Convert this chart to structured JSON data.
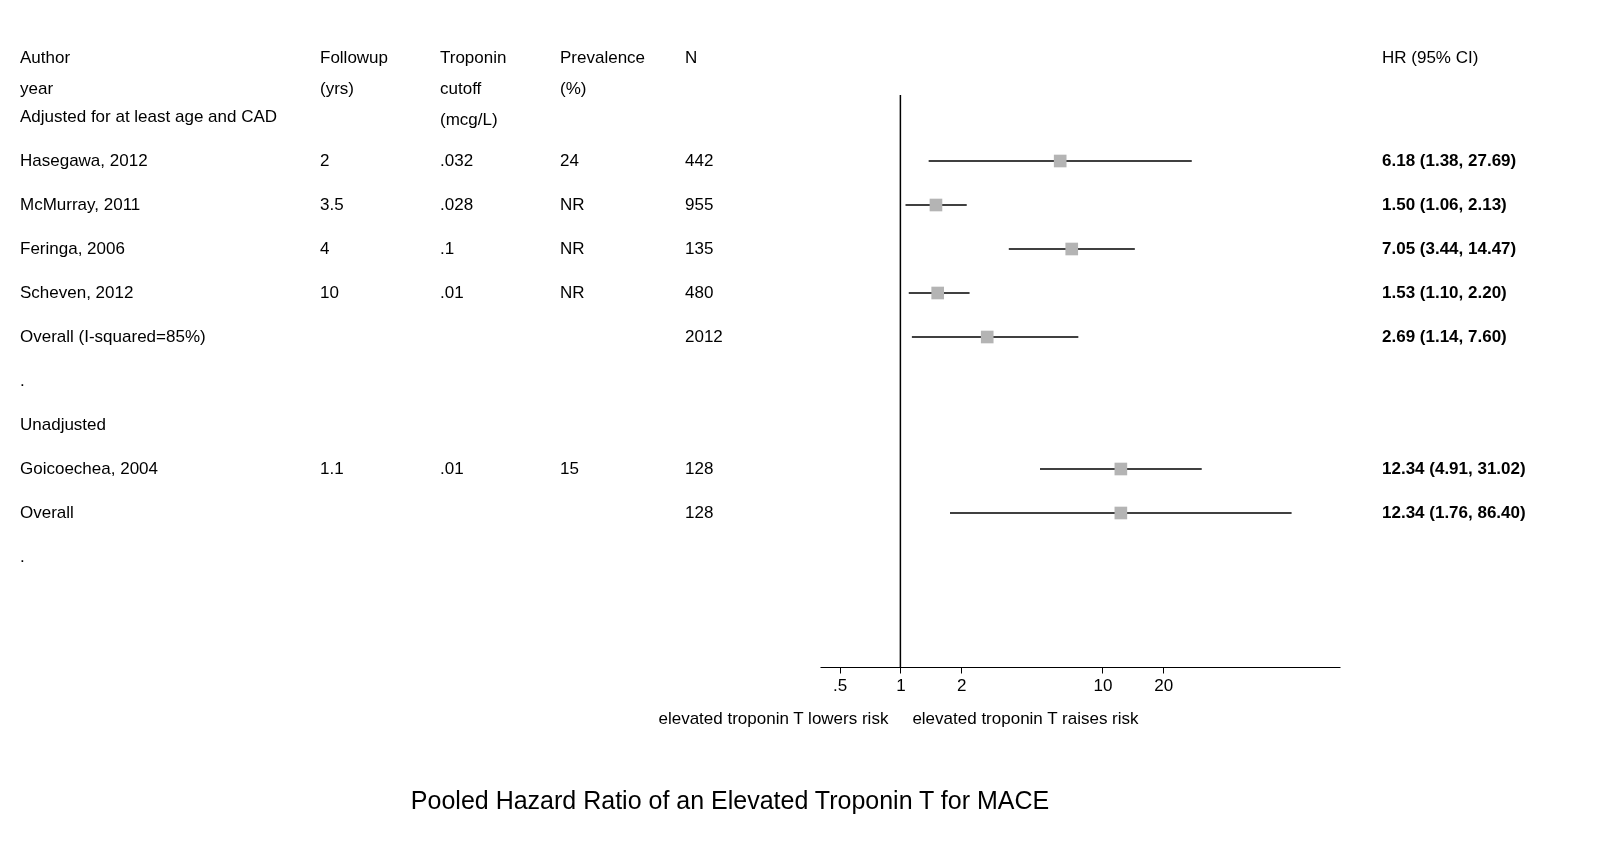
{
  "chart_data": [
    {
      "type": "other",
      "ylabel": "Author\nyear",
      "categories": [
        "Followup\n(yrs)",
        "Troponin\ncutoff\n(mcg/L)",
        "Prevalence\n(%)",
        "N",
        "HR (95% CI)"
      ],
      "y_categories": [
        "Adjusted for at least age and CAD",
        "Hasegawa, 2012",
        "McMurray, 2011",
        "Feringa, 2006",
        "Scheven, 2012",
        "Overall (I-squared=85%)",
        ".",
        "Unadjusted",
        "Goicoechea, 2004",
        "Overall",
        "."
      ],
      "cell_labels": [
        [
          null,
          null,
          null,
          null,
          null
        ],
        [
          "2",
          ".032",
          "24",
          "442",
          "6.18 (1.38, 27.69)"
        ],
        [
          "3.5",
          ".028",
          "NR",
          "955",
          "1.50 (1.06, 2.13)"
        ],
        [
          "4",
          ".1",
          "NR",
          "135",
          "7.05 (3.44, 14.47)"
        ],
        [
          "10",
          ".01",
          "NR",
          "480",
          "1.53 (1.10, 2.20)"
        ],
        [
          null,
          null,
          null,
          "2012",
          "2.69 (1.14, 7.60)"
        ],
        [
          null,
          null,
          null,
          null,
          null
        ],
        [
          null,
          null,
          null,
          null,
          null
        ],
        [
          "1.1",
          ".01",
          "15",
          "128",
          "12.34 (4.91, 31.02)"
        ],
        [
          null,
          null,
          null,
          "128",
          "12.34 (1.76, 86.40)"
        ],
        [
          null,
          null,
          null,
          null,
          null
        ]
      ]
    },
    {
      "type": "scatter",
      "orientation": "horizontal",
      "title": "Pooled Hazard Ratio of an Elevated Troponin T for MACE",
      "categories": [
        null,
        null,
        null,
        null,
        null,
        null,
        null,
        null,
        null,
        null,
        null,
        null,
        null
      ],
      "values": [
        null,
        6.18,
        1.5,
        7.05,
        1.53,
        2.69,
        null,
        null,
        12.34,
        12.34,
        null,
        null,
        null
      ],
      "errors": [
        null,
        [
          1.38,
          27.69
        ],
        [
          1.06,
          2.13
        ],
        [
          3.44,
          14.47
        ],
        [
          1.1,
          2.2
        ],
        [
          1.14,
          7.6
        ],
        null,
        null,
        [
          4.91,
          31.02
        ],
        [
          1.76,
          86.4
        ],
        null,
        null,
        null
      ],
      "color": "#b4b4b4",
      "marker": "square",
      "log": "x",
      "xlim": [
        0.4,
        150
      ],
      "xticks": [
        {
          "value": 0.5,
          "label": ".5"
        },
        1,
        2,
        10,
        20
      ],
      "tick_labels": "x",
      "ref_lines": [
        {
          "axis": "x",
          "value": 1,
          "color": "#000000"
        }
      ],
      "annotations": [
        "elevated troponin T lowers risk",
        "elevated troponin T raises risk"
      ]
    }
  ]
}
